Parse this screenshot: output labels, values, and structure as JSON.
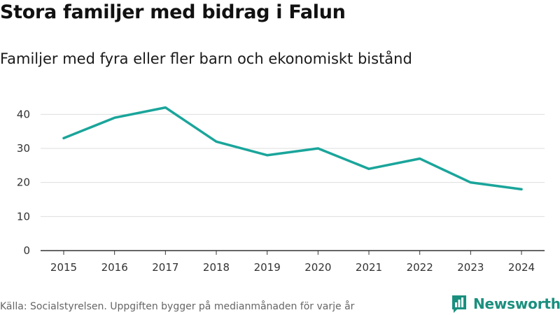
{
  "header": {
    "title": "Stora familjer med bidrag i Falun",
    "subtitle": "Familjer med fyra eller fler barn och ekonomiskt bistånd"
  },
  "footer": {
    "source": "Källa: Socialstyrelsen. Uppgiften bygger på medianmånaden för varje år",
    "brand": "Newsworthy"
  },
  "colors": {
    "line": "#1aa59b",
    "grid": "#dddddd",
    "axis": "#333333",
    "brand": "#1a8f7e"
  },
  "chart_data": {
    "type": "line",
    "title": "Stora familjer med bidrag i Falun",
    "subtitle": "Familjer med fyra eller fler barn och ekonomiskt bistånd",
    "xlabel": "",
    "ylabel": "",
    "categories": [
      "2015",
      "2016",
      "2017",
      "2018",
      "2019",
      "2020",
      "2021",
      "2022",
      "2023",
      "2024"
    ],
    "series": [
      {
        "name": "Familjer",
        "values": [
          33,
          39,
          42,
          32,
          28,
          30,
          24,
          27,
          20,
          18
        ]
      }
    ],
    "ylim": [
      0,
      45
    ],
    "yticks": [
      0,
      10,
      20,
      30,
      40
    ],
    "grid": true,
    "legend": "none"
  }
}
